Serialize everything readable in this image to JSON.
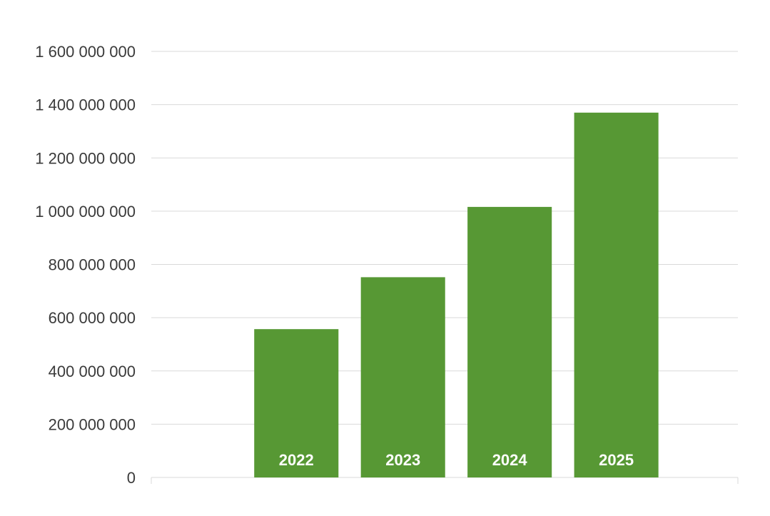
{
  "chart_data": {
    "type": "bar",
    "title": "",
    "xlabel": "",
    "ylabel": "",
    "categories": [
      "2022",
      "2023",
      "2024",
      "2025"
    ],
    "values": [
      557000000,
      752000000,
      1016000000,
      1370000000
    ],
    "ylim": [
      0,
      1600000000
    ],
    "yticks": [
      0,
      200000000,
      400000000,
      600000000,
      800000000,
      1000000000,
      1200000000,
      1400000000,
      1600000000
    ],
    "ytick_labels": [
      "0",
      "200 000 000",
      "400 000 000",
      "600 000 000",
      "800 000 000",
      "1 000 000 000",
      "1 200 000 000",
      "1 400 000 000",
      "1 600 000 000"
    ],
    "category_labels_inside_bars": true,
    "grid": true,
    "legend": "none",
    "bar_color": "#579834",
    "grid_color": "#d9d9d9",
    "label_color": "#ffffff"
  }
}
